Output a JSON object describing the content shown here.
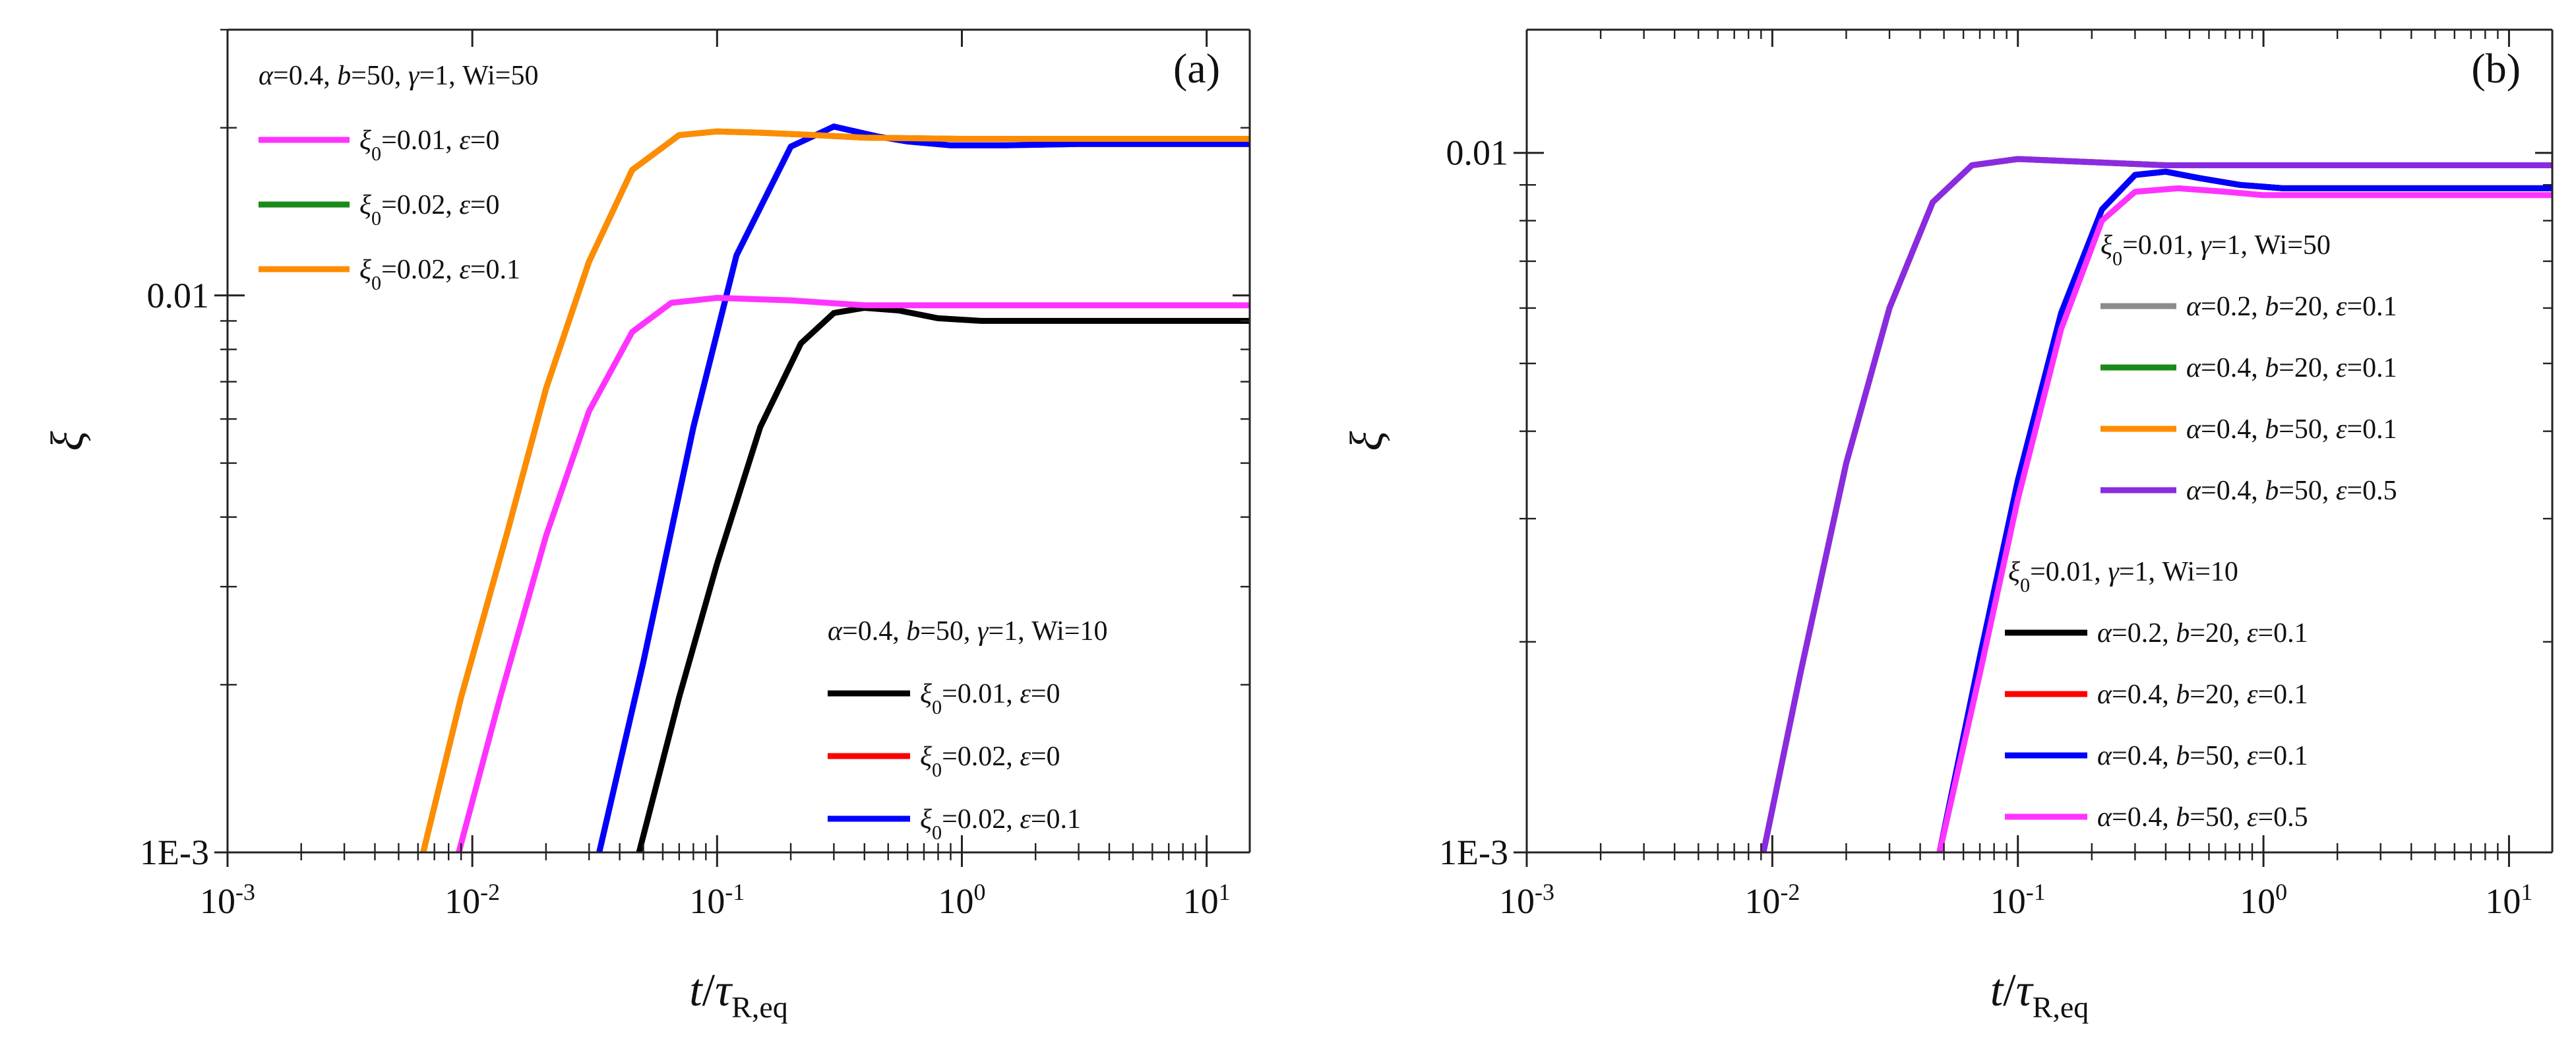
{
  "chart_data": [
    {
      "type": "line",
      "panel_label": "(a)",
      "x_scale": "log",
      "y_scale": "log",
      "xlim": [
        0.001,
        15
      ],
      "ylim": [
        0.001,
        0.03
      ],
      "xticks": [
        {
          "value": 0.001,
          "base": "10",
          "exp": "-3"
        },
        {
          "value": 0.01,
          "base": "10",
          "exp": "-2"
        },
        {
          "value": 0.1,
          "base": "10",
          "exp": "-1"
        },
        {
          "value": 1,
          "base": "10",
          "exp": "0"
        },
        {
          "value": 10,
          "base": "10",
          "exp": "1"
        }
      ],
      "yticks": [
        {
          "value": 0.001,
          "label": "1E-3"
        },
        {
          "value": 0.01,
          "label": "0.01"
        }
      ],
      "xlabel": {
        "var": "t",
        "slash": "/",
        "tau": "τ",
        "sub": "R,eq"
      },
      "ylabel": "ξ",
      "legends": [
        {
          "title": "α=0.4, b=50, γ=1, Wi=50",
          "position": "top-left",
          "entries": [
            {
              "label": "ξ0=0.01, ε=0",
              "color": "#ff33ff"
            },
            {
              "label": "ξ0=0.02, ε=0",
              "color": "#1a8a1a"
            },
            {
              "label": "ξ0=0.02, ε=0.1",
              "color": "#ff8c00"
            }
          ]
        },
        {
          "title": "α=0.4, b=50, γ=1, Wi=10",
          "position": "bottom-right",
          "entries": [
            {
              "label": "ξ0=0.01, ε=0",
              "color": "#000000"
            },
            {
              "label": "ξ0=0.02, ε=0",
              "color": "#ff0000"
            },
            {
              "label": "ξ0=0.02, ε=0.1",
              "color": "#0000ff"
            }
          ]
        }
      ],
      "series": [
        {
          "name": "Wi=10, ξ0=0.02, ε=0",
          "color": "#ff0000",
          "x": [
            0.033,
            0.05,
            0.08,
            0.12,
            0.2,
            0.3,
            0.45,
            0.6,
            0.9,
            1.5,
            3,
            6,
            15
          ],
          "y": [
            0.001,
            0.0022,
            0.0058,
            0.0118,
            0.0185,
            0.0201,
            0.0193,
            0.0189,
            0.0186,
            0.0186,
            0.0187,
            0.0187,
            0.0187
          ]
        },
        {
          "name": "Wi=10, ξ0=0.02, ε=0.1",
          "color": "#0000ff",
          "x": [
            0.033,
            0.05,
            0.08,
            0.12,
            0.2,
            0.3,
            0.45,
            0.6,
            0.9,
            1.5,
            3,
            6,
            15
          ],
          "y": [
            0.001,
            0.0022,
            0.0058,
            0.0118,
            0.0185,
            0.0201,
            0.0193,
            0.0189,
            0.0186,
            0.0186,
            0.0187,
            0.0187,
            0.0187
          ]
        },
        {
          "name": "Wi=10, ξ0=0.01, ε=0",
          "color": "#000000",
          "x": [
            0.048,
            0.07,
            0.1,
            0.15,
            0.22,
            0.3,
            0.4,
            0.55,
            0.8,
            1.2,
            2,
            5,
            15
          ],
          "y": [
            0.001,
            0.0019,
            0.0033,
            0.0058,
            0.0082,
            0.0093,
            0.0095,
            0.0094,
            0.0091,
            0.009,
            0.009,
            0.009,
            0.009
          ]
        },
        {
          "name": "Wi=50, ξ0=0.01, ε=0",
          "color": "#ff33ff",
          "x": [
            0.0088,
            0.013,
            0.02,
            0.03,
            0.045,
            0.065,
            0.1,
            0.2,
            0.4,
            1,
            3,
            15
          ],
          "y": [
            0.001,
            0.0019,
            0.0037,
            0.0062,
            0.0086,
            0.0097,
            0.0099,
            0.0098,
            0.0096,
            0.0096,
            0.0096,
            0.0096
          ]
        },
        {
          "name": "Wi=50, ξ0=0.02, ε=0",
          "color": "#1a8a1a",
          "x": [
            0.0063,
            0.009,
            0.014,
            0.02,
            0.03,
            0.045,
            0.07,
            0.1,
            0.15,
            0.25,
            0.4,
            1,
            3,
            15
          ],
          "y": [
            0.001,
            0.0019,
            0.0038,
            0.0068,
            0.0115,
            0.0168,
            0.0194,
            0.0197,
            0.0196,
            0.0194,
            0.0192,
            0.0191,
            0.0191,
            0.0191
          ]
        },
        {
          "name": "Wi=50, ξ0=0.02, ε=0.1",
          "color": "#ff8c00",
          "x": [
            0.0063,
            0.009,
            0.014,
            0.02,
            0.03,
            0.045,
            0.07,
            0.1,
            0.15,
            0.25,
            0.4,
            1,
            3,
            15
          ],
          "y": [
            0.001,
            0.0019,
            0.0038,
            0.0068,
            0.0115,
            0.0168,
            0.0194,
            0.0197,
            0.0196,
            0.0194,
            0.0192,
            0.0191,
            0.0191,
            0.0191
          ]
        }
      ]
    },
    {
      "type": "line",
      "panel_label": "(b)",
      "x_scale": "log",
      "y_scale": "log",
      "xlim": [
        0.001,
        15
      ],
      "ylim": [
        0.001,
        0.015
      ],
      "xticks": [
        {
          "value": 0.001,
          "base": "10",
          "exp": "-3"
        },
        {
          "value": 0.01,
          "base": "10",
          "exp": "-2"
        },
        {
          "value": 0.1,
          "base": "10",
          "exp": "-1"
        },
        {
          "value": 1,
          "base": "10",
          "exp": "0"
        },
        {
          "value": 10,
          "base": "10",
          "exp": "1"
        }
      ],
      "yticks": [
        {
          "value": 0.001,
          "label": "1E-3"
        },
        {
          "value": 0.01,
          "label": "0.01"
        }
      ],
      "xlabel": {
        "var": "t",
        "slash": "/",
        "tau": "τ",
        "sub": "R,eq"
      },
      "ylabel": "ξ",
      "legends": [
        {
          "title": "ξ0=0.01, γ=1, Wi=50",
          "position": "top-right",
          "entries": [
            {
              "label": "α=0.2, b=20, ε=0.1",
              "color": "#8c8c8c"
            },
            {
              "label": "α=0.4, b=20, ε=0.1",
              "color": "#1a8a1a"
            },
            {
              "label": "α=0.4, b=50, ε=0.1",
              "color": "#ff8c00"
            },
            {
              "label": "α=0.4, b=50, ε=0.5",
              "color": "#8a2be2"
            }
          ]
        },
        {
          "title": "ξ0=0.01, γ=1, Wi=10",
          "position": "bottom-right",
          "entries": [
            {
              "label": "α=0.2, b=20, ε=0.1",
              "color": "#000000"
            },
            {
              "label": "α=0.4, b=20, ε=0.1",
              "color": "#ff0000"
            },
            {
              "label": "α=0.4, b=50, ε=0.1",
              "color": "#0000ff"
            },
            {
              "label": "α=0.4, b=50, ε=0.5",
              "color": "#ff33ff"
            }
          ]
        }
      ],
      "series": [
        {
          "name": "Wi=10, α=0.2, b=20, ε=0.1",
          "color": "#000000",
          "x": [
            0.048,
            0.07,
            0.1,
            0.15,
            0.22,
            0.3,
            0.4,
            0.55,
            0.8,
            1.2,
            2,
            5,
            15
          ],
          "y": [
            0.001,
            0.0019,
            0.0034,
            0.0059,
            0.0083,
            0.0093,
            0.0094,
            0.0092,
            0.009,
            0.0089,
            0.0089,
            0.0089,
            0.0089
          ]
        },
        {
          "name": "Wi=10, α=0.4, b=20, ε=0.1",
          "color": "#ff0000",
          "x": [
            0.048,
            0.07,
            0.1,
            0.15,
            0.22,
            0.3,
            0.4,
            0.55,
            0.8,
            1.2,
            2,
            5,
            15
          ],
          "y": [
            0.001,
            0.0019,
            0.0034,
            0.0059,
            0.0083,
            0.0093,
            0.0094,
            0.0092,
            0.009,
            0.0089,
            0.0089,
            0.0089,
            0.0089
          ]
        },
        {
          "name": "Wi=10, α=0.4, b=50, ε=0.1",
          "color": "#0000ff",
          "x": [
            0.048,
            0.07,
            0.1,
            0.15,
            0.22,
            0.3,
            0.4,
            0.55,
            0.8,
            1.2,
            2,
            5,
            15
          ],
          "y": [
            0.001,
            0.0019,
            0.0034,
            0.0059,
            0.0083,
            0.0093,
            0.0094,
            0.0092,
            0.009,
            0.0089,
            0.0089,
            0.0089,
            0.0089
          ]
        },
        {
          "name": "Wi=10, α=0.4, b=50, ε=0.5",
          "color": "#ff33ff",
          "x": [
            0.048,
            0.07,
            0.1,
            0.15,
            0.22,
            0.3,
            0.45,
            0.7,
            1,
            2,
            5,
            15
          ],
          "y": [
            0.001,
            0.0018,
            0.0032,
            0.0056,
            0.008,
            0.0088,
            0.0089,
            0.0088,
            0.0087,
            0.0087,
            0.0087,
            0.0087
          ]
        },
        {
          "name": "Wi=50, α=0.2, b=20, ε=0.1",
          "color": "#8c8c8c",
          "x": [
            0.0092,
            0.013,
            0.02,
            0.03,
            0.045,
            0.065,
            0.1,
            0.2,
            0.4,
            1,
            3,
            15
          ],
          "y": [
            0.001,
            0.0018,
            0.0036,
            0.006,
            0.0085,
            0.0096,
            0.0098,
            0.0097,
            0.0096,
            0.0096,
            0.0096,
            0.0096
          ]
        },
        {
          "name": "Wi=50, α=0.4, b=20, ε=0.1",
          "color": "#1a8a1a",
          "x": [
            0.0092,
            0.013,
            0.02,
            0.03,
            0.045,
            0.065,
            0.1,
            0.2,
            0.4,
            1,
            3,
            15
          ],
          "y": [
            0.001,
            0.0018,
            0.0036,
            0.006,
            0.0085,
            0.0096,
            0.0098,
            0.0097,
            0.0096,
            0.0096,
            0.0096,
            0.0096
          ]
        },
        {
          "name": "Wi=50, α=0.4, b=50, ε=0.1",
          "color": "#ff8c00",
          "x": [
            0.0092,
            0.013,
            0.02,
            0.03,
            0.045,
            0.065,
            0.1,
            0.2,
            0.4,
            1,
            3,
            15
          ],
          "y": [
            0.001,
            0.0018,
            0.0036,
            0.006,
            0.0085,
            0.0096,
            0.0098,
            0.0097,
            0.0096,
            0.0096,
            0.0096,
            0.0096
          ]
        },
        {
          "name": "Wi=50, α=0.4, b=50, ε=0.5",
          "color": "#8a2be2",
          "x": [
            0.0092,
            0.013,
            0.02,
            0.03,
            0.045,
            0.065,
            0.1,
            0.2,
            0.4,
            1,
            3,
            15
          ],
          "y": [
            0.001,
            0.0018,
            0.0036,
            0.006,
            0.0085,
            0.0096,
            0.0098,
            0.0097,
            0.0096,
            0.0096,
            0.0096,
            0.0096
          ]
        }
      ]
    }
  ]
}
